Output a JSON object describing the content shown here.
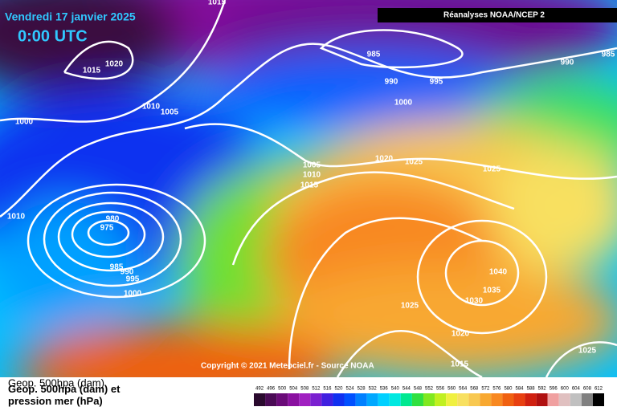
{
  "header": {
    "title": "Vendredi 17 janvier 2025",
    "time": "0:00 UTC",
    "source_box": "Réanalyses NOAA/NCEP 2"
  },
  "isobar_labels": [
    1015,
    1020,
    1015,
    1010,
    1005,
    1000,
    985,
    990,
    995,
    1000,
    990,
    985,
    1020,
    1025,
    1025,
    1005,
    1010,
    1015,
    1010,
    980,
    975,
    985,
    990,
    995,
    1000,
    1040,
    1035,
    1030,
    1025,
    1020,
    1015,
    1025
  ],
  "copyright": "Copyright © 2021 Meteociel.fr - Source NOAA",
  "legend": {
    "title_short": "Geop. 500hpa (dam)",
    "title": "Geop. 500hpa (dam) et pression mer (hPa)",
    "scale": [
      492,
      496,
      500,
      504,
      508,
      512,
      516,
      520,
      524,
      528,
      532,
      536,
      540,
      544,
      548,
      552,
      556,
      560,
      564,
      568,
      572,
      576,
      580,
      584,
      588,
      592,
      596,
      600,
      604,
      608,
      612
    ],
    "colors": [
      "#2a0a2e",
      "#4a0a55",
      "#6a0a78",
      "#8a10a0",
      "#a020c0",
      "#7a20d0",
      "#4020e0",
      "#1030f0",
      "#0050ff",
      "#0080ff",
      "#00a8ff",
      "#00d0ff",
      "#00e8e0",
      "#00e890",
      "#30e040",
      "#80e820",
      "#c0f020",
      "#f0f040",
      "#f8e060",
      "#f8c850",
      "#f8a830",
      "#f88820",
      "#f06010",
      "#e84010",
      "#d02010",
      "#b01010",
      "#f0a0a0",
      "#e0c0c0",
      "#c0c0c0",
      "#808080",
      "#000000"
    ]
  }
}
